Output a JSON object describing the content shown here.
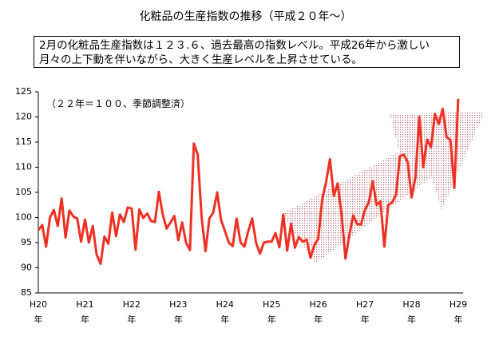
{
  "chart_data": {
    "type": "line",
    "title": "化粧品の生産指数の推移（平成２０年～）",
    "annotation": [
      "2月の化粧品生産指数は１２３.６、過去最高の指数レベル。平成26年から激しい",
      "月々の上下動を伴いながら、大きく生産レベルを上昇させている。"
    ],
    "subtitle": "（２２年＝１００、季節調整済）",
    "color": "#ee3124",
    "categories": [
      "H20年",
      null,
      null,
      null,
      null,
      null,
      null,
      null,
      null,
      null,
      null,
      null,
      "H21年",
      null,
      null,
      null,
      null,
      null,
      null,
      null,
      null,
      null,
      null,
      null,
      "H22年",
      null,
      null,
      null,
      null,
      null,
      null,
      null,
      null,
      null,
      null,
      null,
      "H23年",
      null,
      null,
      null,
      null,
      null,
      null,
      null,
      null,
      null,
      null,
      null,
      "H24年",
      null,
      null,
      null,
      null,
      null,
      null,
      null,
      null,
      null,
      null,
      null,
      "H25年",
      null,
      null,
      null,
      null,
      null,
      null,
      null,
      null,
      null,
      null,
      null,
      "H26年",
      null,
      null,
      null,
      null,
      null,
      null,
      null,
      null,
      null,
      null,
      null,
      "H27年",
      null,
      null,
      null,
      null,
      null,
      null,
      null,
      null,
      null,
      null,
      null,
      "H28年",
      null,
      null,
      null,
      null,
      null,
      null,
      null,
      null,
      null,
      null,
      null,
      "H29年"
    ],
    "values": [
      97.5,
      98.5,
      94.2,
      100,
      101.5,
      98.3,
      103.8,
      96,
      101.4,
      100.2,
      99.8,
      95.2,
      99.6,
      95,
      98.3,
      92.6,
      90.8,
      96.2,
      94.8,
      101,
      96.3,
      100.6,
      99.1,
      102,
      101.8,
      93.6,
      101.6,
      99.9,
      100.8,
      99.3,
      99.1,
      105.1,
      100.6,
      97.8,
      99,
      100.3,
      95.5,
      99,
      95,
      93.5,
      114.7,
      112.5,
      100,
      93.3,
      99.8,
      101,
      105,
      99.5,
      97.3,
      95,
      94.3,
      99.8,
      95.1,
      94.2,
      97.3,
      99.8,
      95,
      92.8,
      95,
      95.2,
      95.2,
      96.9,
      94.1,
      100.6,
      93.4,
      98.8,
      94,
      96.1,
      95.2,
      95.6,
      92,
      94.5,
      95.8,
      103.5,
      107,
      111.6,
      104.3,
      106.8,
      100.5,
      91.8,
      96.5,
      100.4,
      98.7,
      98.6,
      101.5,
      103,
      107.2,
      102.5,
      103.2,
      94.2,
      102.5,
      103,
      104.5,
      112.2,
      112.5,
      111,
      104,
      108,
      120,
      110,
      115.5,
      114,
      120.6,
      118.6,
      121.6,
      116,
      115.4,
      105.9,
      123.6
    ],
    "ylim": [
      85,
      125
    ],
    "yticks": [
      85,
      90,
      95,
      100,
      105,
      110,
      115,
      120,
      125
    ]
  }
}
